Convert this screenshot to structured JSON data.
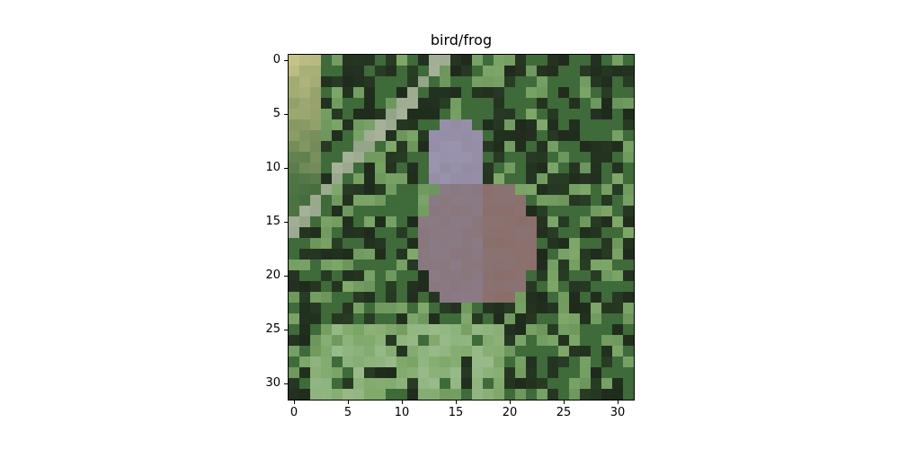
{
  "title": "bird/frog",
  "image": {
    "size": [
      32,
      32
    ],
    "description_colors": {
      "foliage_dark": "#1f2a1c",
      "foliage_mid": "#3f6a3a",
      "foliage_light": "#7fa86a",
      "bird_body": "#8a7f8f",
      "bird_head": "#9a94b0",
      "bird_wing": "#8a6a60",
      "branch": "#a8b29a",
      "straw": "#c8c48a"
    }
  },
  "axes": {
    "xticks": [
      "0",
      "5",
      "10",
      "15",
      "20",
      "25",
      "30"
    ],
    "yticks": [
      "0",
      "5",
      "10",
      "15",
      "20",
      "25",
      "30"
    ],
    "tick_values": [
      0,
      5,
      10,
      15,
      20,
      25,
      30
    ]
  }
}
